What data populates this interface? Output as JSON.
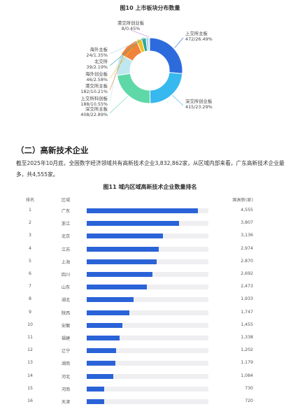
{
  "figure10": {
    "title": "图10 上市板块分布数量"
  },
  "chart_data": [
    {
      "type": "pie",
      "donut": true,
      "title": "图10 上市板块分布数量",
      "slices": [
        {
          "label": "上交所主板",
          "count": 472,
          "percent": "26.49%",
          "color": "#2d6bdc"
        },
        {
          "label": "深交所创业板",
          "count": 415,
          "percent": "23.29%",
          "color": "#37b8ef"
        },
        {
          "label": "深交所主板",
          "count": 408,
          "percent": "22.89%",
          "color": "#5fd8a8"
        },
        {
          "label": "上交所科创板",
          "count": 188,
          "percent": "10.55%",
          "color": "#bfe7ef"
        },
        {
          "label": "港交所主板",
          "count": 182,
          "percent": "10.21%",
          "color": "#f1823b"
        },
        {
          "label": "海外创业板",
          "count": 46,
          "percent": "2.58%",
          "color": "#f4bf23"
        },
        {
          "label": "北交所",
          "count": 39,
          "percent": "2.19%",
          "color": "#2fa89a"
        },
        {
          "label": "海外主板",
          "count": 24,
          "percent": "1.35%",
          "color": "#9bd7ef"
        },
        {
          "label": "港交所创业板",
          "count": 8,
          "percent": "0.45%",
          "color": "#b77ad6"
        }
      ]
    },
    {
      "type": "bar",
      "orientation": "horizontal",
      "title": "图11 域内区域高新技术企业数量排名",
      "columns": {
        "rank": "排名",
        "region": "区域",
        "value": "国高新(家)"
      },
      "xlim": [
        0,
        5000
      ],
      "bar_color": "#2a63d8",
      "categories": [
        "广东",
        "浙江",
        "北京",
        "江苏",
        "上海",
        "四川",
        "山东",
        "湖北",
        "陕西",
        "安徽",
        "福建",
        "辽宁",
        "湖南",
        "河北",
        "河南",
        "天津"
      ],
      "ranks": [
        "1",
        "2",
        "3",
        "4",
        "5",
        "6",
        "7",
        "8",
        "9",
        "10",
        "11",
        "12",
        "13",
        "14",
        "15",
        "16"
      ],
      "values": [
        4555,
        3807,
        3136,
        2974,
        2870,
        2692,
        2473,
        1933,
        1747,
        1455,
        1338,
        1202,
        1179,
        1084,
        730,
        720
      ],
      "value_labels": [
        "4,555",
        "3,807",
        "3,136",
        "2,974",
        "2,870",
        "2,692",
        "2,473",
        "1,933",
        "1,747",
        "1,455",
        "1,338",
        "1,202",
        "1,179",
        "1,084",
        "730",
        "720"
      ]
    }
  ],
  "section": {
    "title": "（二）高新技术企业",
    "paragraph": "截至2025年10月底，全国数字经济领域共有高新技术企业3,832,862家，从区域内部来看，广东高新技术企业最多，共4,555家。"
  },
  "figure11": {
    "title": "图11 域内区域高新技术企业数量排名"
  }
}
